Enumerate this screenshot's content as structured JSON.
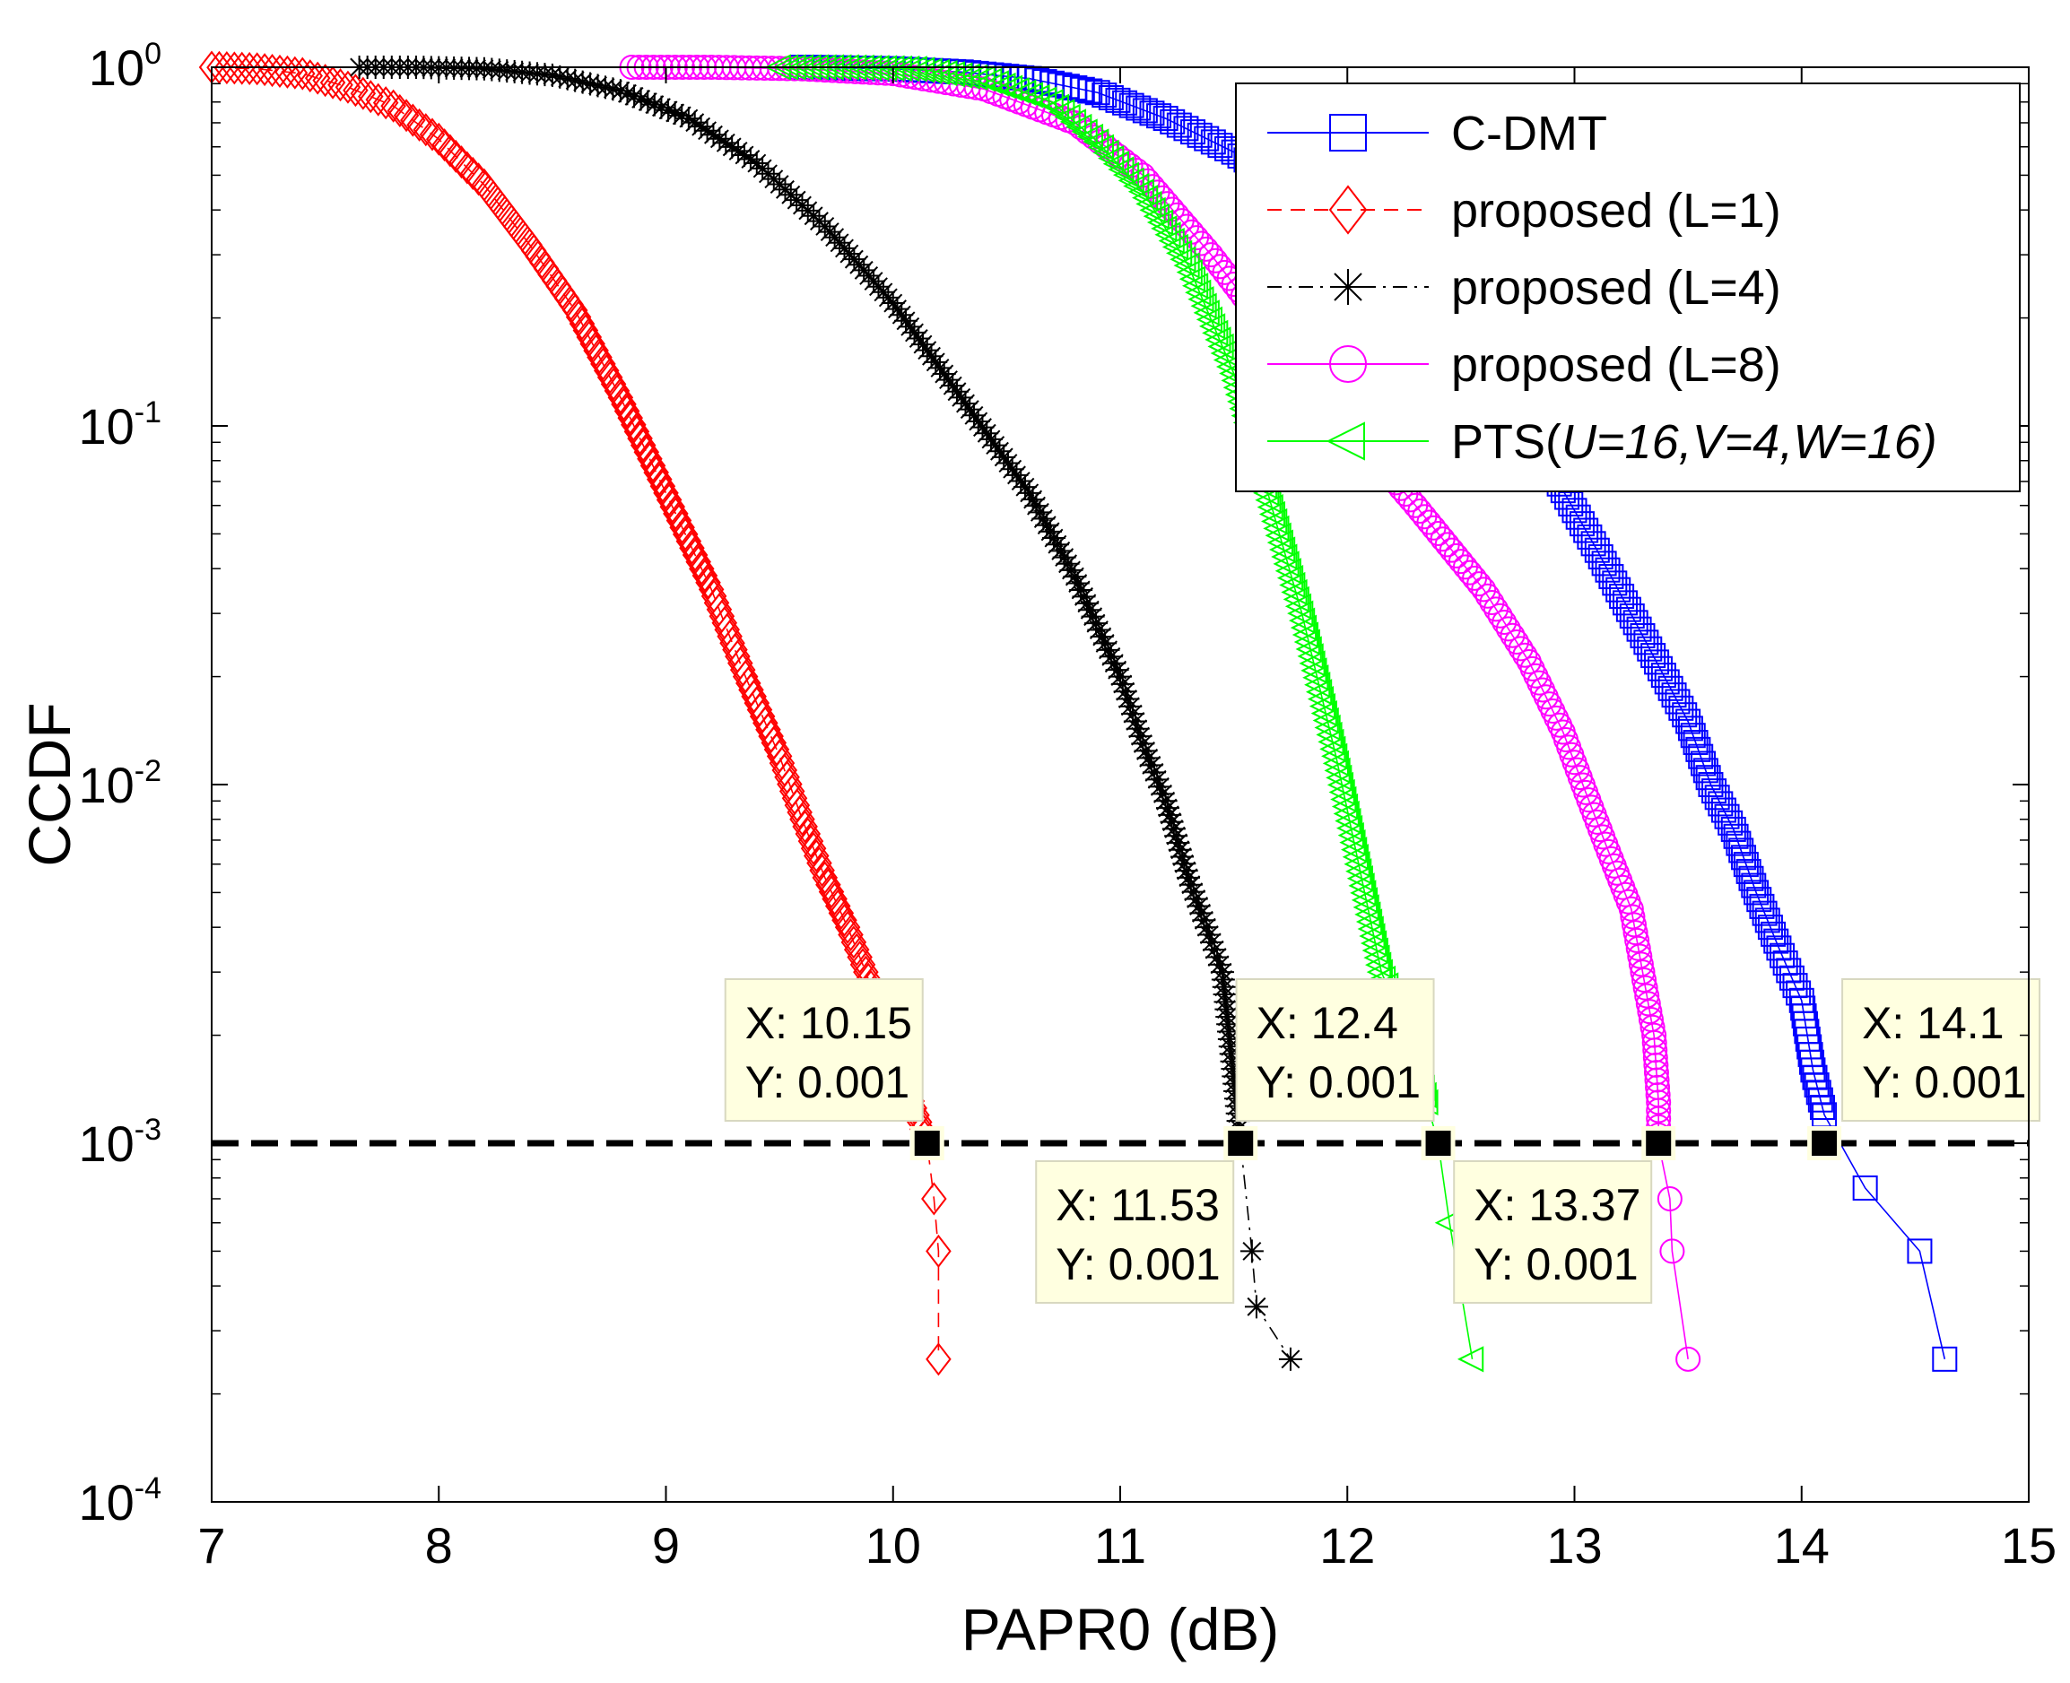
{
  "chart_data": {
    "type": "line",
    "title": "",
    "xlabel": "PAPR0 (dB)",
    "ylabel": "CCDF",
    "xlim": [
      7,
      15
    ],
    "ylim": [
      0.0001,
      1
    ],
    "yscale": "log",
    "grid": false,
    "legend_position": "top-right",
    "x_ticks": [
      "7",
      "8",
      "9",
      "10",
      "11",
      "12",
      "13",
      "14",
      "15"
    ],
    "y_ticks": [
      {
        "base": "10",
        "exp": "0",
        "value": 1
      },
      {
        "base": "10",
        "exp": "-1",
        "value": 0.1
      },
      {
        "base": "10",
        "exp": "-2",
        "value": 0.01
      },
      {
        "base": "10",
        "exp": "-3",
        "value": 0.001
      },
      {
        "base": "10",
        "exp": "-4",
        "value": 0.0001
      }
    ],
    "series": [
      {
        "name": "C-DMT",
        "color": "#0000ff",
        "marker": "square",
        "dash": "solid",
        "points": [
          [
            9.6,
            1
          ],
          [
            10.0,
            0.99
          ],
          [
            10.3,
            0.97
          ],
          [
            10.6,
            0.93
          ],
          [
            10.9,
            0.85
          ],
          [
            11.2,
            0.72
          ],
          [
            11.5,
            0.58
          ],
          [
            11.8,
            0.44
          ],
          [
            12.1,
            0.32
          ],
          [
            12.4,
            0.21
          ],
          [
            12.7,
            0.12
          ],
          [
            12.9,
            0.075
          ],
          [
            13.1,
            0.045
          ],
          [
            13.3,
            0.026
          ],
          [
            13.5,
            0.015
          ],
          [
            13.6,
            0.01
          ],
          [
            13.7,
            0.0075
          ],
          [
            13.8,
            0.005
          ],
          [
            13.9,
            0.0035
          ],
          [
            14.0,
            0.0025
          ],
          [
            14.05,
            0.0016
          ],
          [
            14.1,
            0.0012
          ],
          [
            14.28,
            0.00075
          ],
          [
            14.52,
            0.0005
          ],
          [
            14.63,
            0.00025
          ]
        ]
      },
      {
        "name": "proposed (L=1)",
        "color": "#ff0000",
        "marker": "diamond",
        "dash": "dashed",
        "points": [
          [
            7.0,
            1
          ],
          [
            7.2,
            0.99
          ],
          [
            7.4,
            0.96
          ],
          [
            7.6,
            0.88
          ],
          [
            7.8,
            0.78
          ],
          [
            8.0,
            0.63
          ],
          [
            8.2,
            0.47
          ],
          [
            8.4,
            0.32
          ],
          [
            8.6,
            0.21
          ],
          [
            8.8,
            0.12
          ],
          [
            9.0,
            0.065
          ],
          [
            9.2,
            0.035
          ],
          [
            9.35,
            0.02
          ],
          [
            9.5,
            0.012
          ],
          [
            9.6,
            0.008
          ],
          [
            9.7,
            0.0055
          ],
          [
            9.8,
            0.004
          ],
          [
            9.88,
            0.003
          ],
          [
            10.05,
            0.0015
          ],
          [
            10.15,
            0.001
          ],
          [
            10.18,
            0.0007
          ],
          [
            10.2,
            0.0005
          ],
          [
            10.2,
            0.00025
          ]
        ]
      },
      {
        "name": "proposed (L=4)",
        "color": "#000000",
        "marker": "star",
        "dash": "dashdot",
        "points": [
          [
            7.65,
            1
          ],
          [
            7.9,
            1
          ],
          [
            8.2,
            0.99
          ],
          [
            8.5,
            0.95
          ],
          [
            8.8,
            0.86
          ],
          [
            9.1,
            0.72
          ],
          [
            9.4,
            0.54
          ],
          [
            9.7,
            0.36
          ],
          [
            10.0,
            0.22
          ],
          [
            10.3,
            0.12
          ],
          [
            10.6,
            0.065
          ],
          [
            10.8,
            0.038
          ],
          [
            11.0,
            0.02
          ],
          [
            11.1,
            0.013
          ],
          [
            11.2,
            0.009
          ],
          [
            11.3,
            0.0055
          ],
          [
            11.38,
            0.004
          ],
          [
            11.45,
            0.003
          ],
          [
            11.53,
            0.001
          ],
          [
            11.58,
            0.0005
          ],
          [
            11.6,
            0.00035
          ],
          [
            11.75,
            0.00025
          ]
        ]
      },
      {
        "name": "proposed (L=8)",
        "color": "#ff00ff",
        "marker": "circle",
        "dash": "solid",
        "points": [
          [
            8.85,
            1
          ],
          [
            9.2,
            1
          ],
          [
            9.6,
            0.99
          ],
          [
            10.0,
            0.96
          ],
          [
            10.4,
            0.87
          ],
          [
            10.8,
            0.7
          ],
          [
            11.1,
            0.5
          ],
          [
            11.4,
            0.3
          ],
          [
            11.7,
            0.17
          ],
          [
            12.0,
            0.1
          ],
          [
            12.3,
            0.06
          ],
          [
            12.6,
            0.035
          ],
          [
            12.8,
            0.022
          ],
          [
            12.95,
            0.014
          ],
          [
            13.05,
            0.0095
          ],
          [
            13.15,
            0.0065
          ],
          [
            13.25,
            0.0045
          ],
          [
            13.3,
            0.003
          ],
          [
            13.35,
            0.002
          ],
          [
            13.37,
            0.0013
          ],
          [
            13.37,
            0.001
          ],
          [
            13.42,
            0.0007
          ],
          [
            13.43,
            0.0005
          ],
          [
            13.5,
            0.00025
          ]
        ]
      },
      {
        "name": "PTS(U=16,V=4,W=16)",
        "color": "#00ff00",
        "marker": "triangle-left",
        "dash": "solid",
        "points": [
          [
            9.5,
            1
          ],
          [
            9.8,
            1
          ],
          [
            10.1,
            0.99
          ],
          [
            10.4,
            0.93
          ],
          [
            10.7,
            0.8
          ],
          [
            10.9,
            0.62
          ],
          [
            11.1,
            0.45
          ],
          [
            11.3,
            0.28
          ],
          [
            11.5,
            0.14
          ],
          [
            11.65,
            0.065
          ],
          [
            11.8,
            0.03
          ],
          [
            11.95,
            0.012
          ],
          [
            12.05,
            0.006
          ],
          [
            12.15,
            0.003
          ],
          [
            12.3,
            0.0018
          ],
          [
            12.35,
            0.0013
          ],
          [
            12.4,
            0.001
          ],
          [
            12.45,
            0.0006
          ],
          [
            12.55,
            0.00025
          ]
        ]
      }
    ],
    "reference_line": {
      "y": 0.001,
      "color": "#000000",
      "dash": "dashed"
    },
    "data_tips": [
      {
        "x": 10.15,
        "y": 0.001,
        "label_x": "X: 10.15",
        "label_y": "Y: 0.001",
        "placement": "upper-left"
      },
      {
        "x": 11.53,
        "y": 0.001,
        "label_x": "X: 11.53",
        "label_y": "Y: 0.001",
        "placement": "lower-left"
      },
      {
        "x": 12.4,
        "y": 0.001,
        "label_x": "X: 12.4",
        "label_y": "Y: 0.001",
        "placement": "upper-left"
      },
      {
        "x": 13.37,
        "y": 0.001,
        "label_x": "X: 13.37",
        "label_y": "Y: 0.001",
        "placement": "lower-left"
      },
      {
        "x": 14.1,
        "y": 0.001,
        "label_x": "X: 14.1",
        "label_y": "Y: 0.001",
        "placement": "upper-right"
      }
    ],
    "legend": [
      {
        "label": "C-DMT"
      },
      {
        "label": "proposed (L=1)"
      },
      {
        "label": "proposed (L=4)"
      },
      {
        "label": "proposed (L=8)"
      },
      {
        "label_prefix": "PTS(",
        "label_italic": "U=16,V=4,W=16)"
      }
    ]
  }
}
